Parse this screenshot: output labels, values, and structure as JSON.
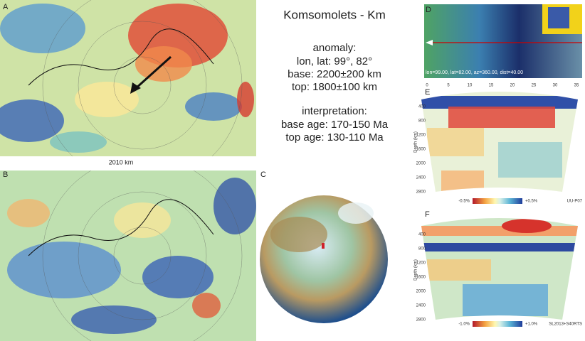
{
  "title": "Komsomolets - Km",
  "panel_labels": [
    "A",
    "B",
    "C",
    "D",
    "E",
    "F"
  ],
  "anomaly": {
    "heading": "anomaly:",
    "lines": [
      "lon, lat: 99°, 82°",
      "base: 2200±200 km",
      "top: 1800±100 km"
    ]
  },
  "interpretation": {
    "heading": "interpretation:",
    "lines": [
      "base age: 170-150 Ma",
      "top age: 130-110 Ma"
    ]
  },
  "map_a_depth": "2010 km",
  "panel_d": {
    "caption": "lon=99.00, lat=82.00, az=360.00, dist=40.00"
  },
  "panel_e": {
    "distance_ticks": [
      0,
      5,
      10,
      15,
      20,
      25,
      30,
      35
    ],
    "depth_label": "Depth (km)",
    "depth_ticks": [
      400,
      800,
      1200,
      1600,
      2000,
      2400,
      2800
    ],
    "scale_min": "-0.5%",
    "scale_max": "+0.5%",
    "model": "UU-P07"
  },
  "panel_f": {
    "depth_label": "Depth (km)",
    "depth_ticks": [
      400,
      800,
      1200,
      1600,
      2000,
      2400,
      2800
    ],
    "scale_min": "-1.0%",
    "scale_max": "+1.0%",
    "model": "SL2013+S40RTS"
  }
}
